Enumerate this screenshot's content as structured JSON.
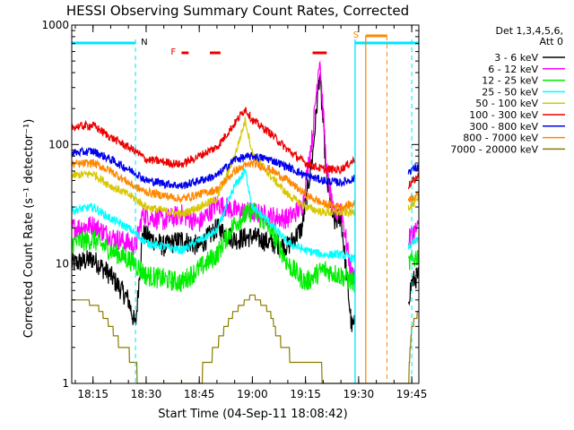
{
  "chart_data": {
    "type": "line",
    "title": "HESSI Observing Summary Count Rates, Corrected",
    "xlabel": "Start Time (04-Sep-11 18:08:42)",
    "ylabel": "Corrected Count Rate (s⁻¹ detector⁻¹)",
    "y_scale": "log",
    "ylim": [
      1,
      1000
    ],
    "xlim": [
      "18:09",
      "19:47"
    ],
    "x_ticks": [
      "18:15",
      "18:30",
      "18:45",
      "19:00",
      "19:15",
      "19:30",
      "19:45"
    ],
    "y_ticks": [
      "1",
      "10",
      "100",
      "1000"
    ],
    "grid": false,
    "legend": {
      "placement": "right",
      "header": [
        "Det 1,3,4,5,6,",
        "Att 0"
      ],
      "entries": [
        {
          "label": "3 - 6 keV",
          "color": "#000000"
        },
        {
          "label": "6 - 12 keV",
          "color": "#ff00ff"
        },
        {
          "label": "12 - 25 keV",
          "color": "#00ee00"
        },
        {
          "label": "25 - 50 keV",
          "color": "#00ffff"
        },
        {
          "label": "50 - 100 keV",
          "color": "#d8c800"
        },
        {
          "label": "100 - 300 keV",
          "color": "#ee0000"
        },
        {
          "label": "300 - 800 keV",
          "color": "#0000ee"
        },
        {
          "label": "800 - 7000 keV",
          "color": "#ff8800"
        },
        {
          "label": "7000 - 20000 keV",
          "color": "#8b7d00"
        }
      ]
    },
    "annotations": {
      "night_marker": {
        "label": "N",
        "color": "#00e5ff",
        "start": "18:27",
        "end": "19:29"
      },
      "saa_marker": {
        "label": "S",
        "color": "#ff8800",
        "start": "19:32",
        "end": "19:38"
      },
      "flare_marker": {
        "label": "F",
        "color": "#ee0000",
        "segments": [
          [
            "18:40",
            "18:42"
          ],
          [
            "18:48",
            "18:51"
          ],
          [
            "19:17",
            "19:21"
          ]
        ]
      }
    },
    "series": [
      {
        "name": "3 - 6 keV",
        "color": "#000000",
        "x": [
          "18:09",
          "18:15",
          "18:20",
          "18:25",
          "18:27",
          "18:29",
          "18:35",
          "18:40",
          "18:45",
          "18:50",
          "18:55",
          "19:00",
          "19:05",
          "19:10",
          "19:14",
          "19:17",
          "19:19",
          "19:21",
          "19:23",
          "19:25",
          "19:28",
          "19:44",
          "19:45",
          "19:47"
        ],
        "y": [
          10,
          11,
          8,
          5,
          3,
          18,
          14,
          16,
          14,
          20,
          16,
          17,
          15,
          14,
          20,
          80,
          400,
          50,
          22,
          25,
          3,
          5,
          7,
          8
        ]
      },
      {
        "name": "6 - 12 keV",
        "color": "#ff00ff",
        "x": [
          "18:09",
          "18:15",
          "18:20",
          "18:25",
          "18:27",
          "18:29",
          "18:35",
          "18:40",
          "18:45",
          "18:50",
          "18:55",
          "19:00",
          "19:05",
          "19:10",
          "19:14",
          "19:17",
          "19:19",
          "19:21",
          "19:23",
          "19:25",
          "19:28",
          "19:44",
          "19:45",
          "19:47"
        ],
        "y": [
          20,
          21,
          17,
          15,
          14,
          26,
          23,
          26,
          22,
          32,
          28,
          27,
          25,
          24,
          30,
          120,
          560,
          60,
          25,
          30,
          8,
          15,
          18,
          20
        ]
      },
      {
        "name": "12 - 25 keV",
        "color": "#00ee00",
        "x": [
          "18:09",
          "18:15",
          "18:20",
          "18:25",
          "18:27",
          "18:30",
          "18:40",
          "18:50",
          "18:55",
          "19:00",
          "19:05",
          "19:10",
          "19:15",
          "19:20",
          "19:25",
          "19:29",
          "19:44",
          "19:47"
        ],
        "y": [
          15,
          16,
          13,
          11,
          10,
          8,
          7,
          12,
          22,
          28,
          20,
          10,
          7,
          9,
          8,
          7,
          10,
          12
        ]
      },
      {
        "name": "25 - 50 keV",
        "color": "#00ffff",
        "x": [
          "18:09",
          "18:15",
          "18:20",
          "18:25",
          "18:27",
          "18:30",
          "18:40",
          "18:50",
          "18:55",
          "18:58",
          "19:00",
          "19:05",
          "19:10",
          "19:15",
          "19:20",
          "19:25",
          "19:29",
          "19:44",
          "19:47"
        ],
        "y": [
          28,
          30,
          24,
          20,
          18,
          15,
          13,
          19,
          45,
          60,
          30,
          22,
          15,
          13,
          12,
          12,
          11,
          14,
          16
        ]
      },
      {
        "name": "50 - 100 keV",
        "color": "#d8c800",
        "x": [
          "18:09",
          "18:15",
          "18:20",
          "18:25",
          "18:27",
          "18:30",
          "18:40",
          "18:50",
          "18:55",
          "18:58",
          "19:00",
          "19:05",
          "19:10",
          "19:15",
          "19:20",
          "19:25",
          "19:29",
          "19:44",
          "19:47"
        ],
        "y": [
          55,
          57,
          45,
          38,
          35,
          30,
          26,
          35,
          80,
          160,
          85,
          55,
          38,
          30,
          27,
          27,
          27,
          30,
          34
        ]
      },
      {
        "name": "100 - 300 keV",
        "color": "#ee0000",
        "x": [
          "18:09",
          "18:15",
          "18:20",
          "18:25",
          "18:27",
          "18:30",
          "18:40",
          "18:50",
          "18:55",
          "18:58",
          "19:00",
          "19:05",
          "19:10",
          "19:15",
          "19:20",
          "19:25",
          "19:29",
          "19:44",
          "19:47"
        ],
        "y": [
          140,
          145,
          115,
          95,
          88,
          75,
          68,
          95,
          150,
          200,
          160,
          125,
          90,
          70,
          62,
          62,
          75,
          45,
          55
        ]
      },
      {
        "name": "300 - 800 keV",
        "color": "#0000ee",
        "x": [
          "18:09",
          "18:15",
          "18:20",
          "18:25",
          "18:27",
          "18:30",
          "18:40",
          "18:50",
          "18:55",
          "19:00",
          "19:05",
          "19:10",
          "19:15",
          "19:20",
          "19:25",
          "19:29",
          "19:44",
          "19:47"
        ],
        "y": [
          85,
          88,
          75,
          62,
          58,
          50,
          45,
          55,
          75,
          80,
          75,
          65,
          55,
          50,
          48,
          52,
          60,
          65
        ]
      },
      {
        "name": "800 - 7000 keV",
        "color": "#ff8800",
        "x": [
          "18:09",
          "18:15",
          "18:20",
          "18:25",
          "18:27",
          "18:30",
          "18:40",
          "18:50",
          "18:55",
          "19:00",
          "19:05",
          "19:10",
          "19:15",
          "19:20",
          "19:25",
          "19:29",
          "19:44",
          "19:47"
        ],
        "y": [
          68,
          70,
          60,
          48,
          44,
          40,
          35,
          42,
          60,
          70,
          62,
          50,
          38,
          32,
          30,
          32,
          35,
          38
        ]
      },
      {
        "name": "7000 - 20000 keV",
        "color": "#8b7d00",
        "x": [
          "18:09",
          "18:12",
          "18:16",
          "18:20",
          "18:23",
          "18:25",
          "18:27",
          "18:28",
          "18:44",
          "18:48",
          "18:52",
          "18:55",
          "19:00",
          "19:05",
          "19:07",
          "19:12",
          "19:29",
          "19:44",
          "19:45",
          "19:47"
        ],
        "y": [
          5,
          5,
          4.5,
          3,
          2,
          1.8,
          1.5,
          1,
          1,
          1.6,
          2.8,
          4,
          5.5,
          4,
          2.5,
          1.5,
          1,
          1,
          3,
          4
        ]
      }
    ]
  }
}
